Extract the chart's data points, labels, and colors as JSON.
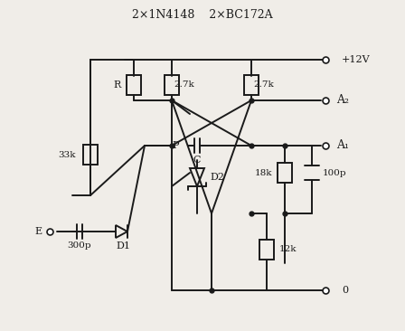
{
  "title": "2×1N4148    2×BC172A",
  "bg_color": "#f0ede8",
  "line_color": "#1a1a1a",
  "text_color": "#1a1a1a",
  "labels": {
    "R": "R",
    "2_7k_left": "2.7k",
    "2_7k_right": "2.7k",
    "33k": "33k",
    "18k": "18k",
    "12k": "12k",
    "300p": "300p",
    "100p": "100p",
    "P": "P",
    "C": "C",
    "D1": "D1",
    "D2": "D2",
    "plus12v": "+12V",
    "A2": "A₂",
    "A1": "A₁",
    "E": "E",
    "zero": "0"
  }
}
